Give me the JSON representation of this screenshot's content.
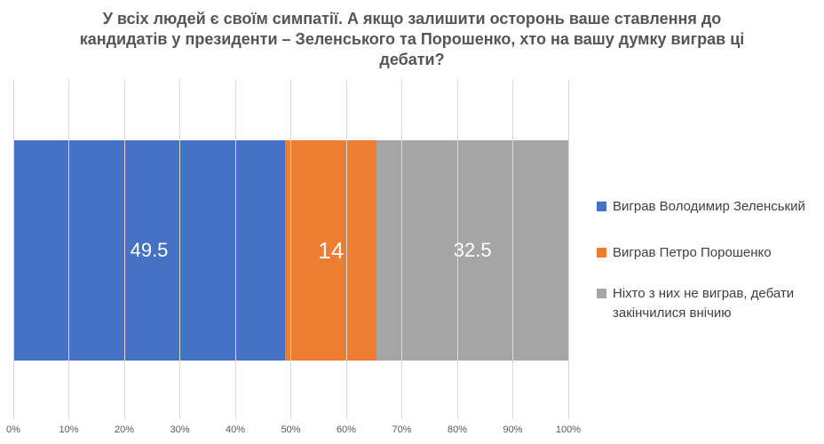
{
  "title_lines": [
    "У всіх людей є своїм симпатії. А якщо залишити осторонь ваше ставлення до",
    "кандидатів у президенти – Зеленського та Порошенко, хто на вашу думку виграв ці",
    "дебати?"
  ],
  "chart_data": {
    "type": "bar",
    "subtype": "horizontal-100pct-stacked",
    "title": "У всіх людей є своїм симпатії. А якщо залишити осторонь ваше ставлення до кандидатів у президенти – Зеленського та Порошенко, хто на вашу думку виграв ці дебати?",
    "categories": [
      ""
    ],
    "series": [
      {
        "name": "Виграв Володимир Зеленський",
        "values": [
          49.5
        ],
        "color": "#4472C4"
      },
      {
        "name": "Виграв Петро Порошенко",
        "values": [
          14
        ],
        "color": "#ED7D31"
      },
      {
        "name": "Ніхто з них не виграв, дебати закінчилися внічию",
        "values": [
          32.5
        ],
        "color": "#A5A5A5"
      }
    ],
    "data_labels": [
      "49.5",
      "14",
      "32.5"
    ],
    "xlabel": "",
    "ylabel": "",
    "xlim": [
      0,
      100
    ],
    "x_ticks": [
      "0%",
      "10%",
      "20%",
      "30%",
      "40%",
      "50%",
      "60%",
      "70%",
      "80%",
      "90%",
      "100%"
    ],
    "grid": "vertical-on",
    "legend_position": "right",
    "gridline_color": "#D9D9D9",
    "tick_label_color": "#595959",
    "title_color": "#555555",
    "legend_text_color": "#404040",
    "data_label_color": "#FFFFFF"
  }
}
